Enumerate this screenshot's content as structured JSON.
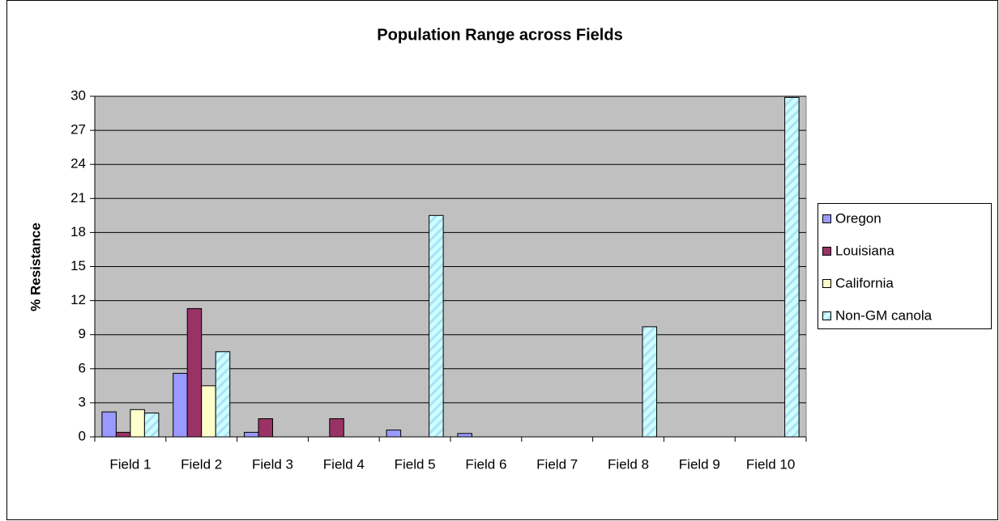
{
  "chart_data": {
    "type": "bar",
    "title": "Population Range across Fields",
    "y_label": "% Resistance",
    "categories": [
      "Field 1",
      "Field 2",
      "Field 3",
      "Field 4",
      "Field 5",
      "Field 6",
      "Field 7",
      "Field 8",
      "Field 9",
      "Field 10"
    ],
    "series": [
      {
        "name": "Oregon",
        "color": "#9999ff",
        "values": [
          2.2,
          5.6,
          0.4,
          0,
          0.6,
          0.3,
          0,
          0,
          0,
          0
        ]
      },
      {
        "name": "Louisiana",
        "color": "#993366",
        "values": [
          0.4,
          11.3,
          1.6,
          1.6,
          0,
          0,
          0,
          0,
          0,
          0
        ]
      },
      {
        "name": "California",
        "color": "#ffffcc",
        "values": [
          2.4,
          4.5,
          0,
          0,
          0,
          0,
          0,
          0,
          0,
          0
        ]
      },
      {
        "name": "Non-GM canola",
        "color": "#ccffff",
        "values": [
          2.1,
          7.5,
          0,
          0,
          19.5,
          0,
          0,
          9.7,
          0,
          29.9
        ]
      }
    ],
    "ylim": [
      0,
      30
    ],
    "yticks": [
      0,
      3,
      6,
      9,
      12,
      15,
      18,
      21,
      24,
      27,
      30
    ],
    "grid": true,
    "legend": "right"
  }
}
